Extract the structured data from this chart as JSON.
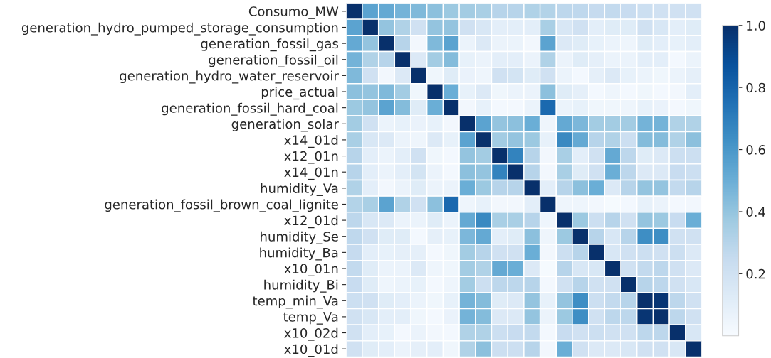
{
  "chart_data": {
    "type": "heatmap",
    "categories": [
      null,
      null,
      null,
      null,
      null,
      null,
      null,
      null,
      null,
      null,
      null,
      null,
      null,
      null,
      null,
      null,
      null,
      null,
      null,
      null,
      null,
      null
    ],
    "y_categories": [
      "Consumo_MW",
      "generation_hydro_pumped_storage_consumption",
      "generation_fossil_gas",
      "generation_fossil_oil",
      "generation_hydro_water_reservoir",
      "price_actual",
      "generation_fossil_hard_coal",
      "generation_solar",
      "x14_01d",
      "x12_01n",
      "x14_01n",
      "humidity_Va",
      "generation_fossil_brown_coal_lignite",
      "x12_01d",
      "humidity_Se",
      "humidity_Ba",
      "x10_01n",
      "humidity_Bi",
      "temp_min_Va",
      "temp_Va",
      "x10_02d",
      "x10_01d"
    ],
    "cells": [
      [
        1,
        0.55,
        0.52,
        0.48,
        0.45,
        0.42,
        0.38,
        0.36,
        0.34,
        0.3,
        0.3,
        0.32,
        0.31,
        0.28,
        0.27,
        0.25,
        0.26,
        0.24,
        0.22,
        0.2,
        0.2,
        0.2
      ],
      [
        0.55,
        1,
        0.4,
        0.32,
        0.2,
        0.4,
        0.4,
        0.2,
        0.16,
        0.1,
        0.1,
        0.1,
        0.34,
        0.16,
        0.2,
        0.1,
        0.12,
        0.12,
        0.2,
        0.16,
        0.1,
        0.12
      ],
      [
        0.52,
        0.4,
        1,
        0.3,
        0.03,
        0.45,
        0.55,
        0.06,
        0.14,
        0.06,
        0.06,
        0.03,
        0.55,
        0.14,
        0.12,
        0.08,
        0.06,
        0.05,
        0.12,
        0.1,
        0.08,
        0.1
      ],
      [
        0.48,
        0.32,
        0.3,
        1,
        0.14,
        0.36,
        0.44,
        0.08,
        0.06,
        0.1,
        0.1,
        0.06,
        0.32,
        0.06,
        0.12,
        0.09,
        0.06,
        0.06,
        0.1,
        0.1,
        0.02,
        0.06
      ],
      [
        0.45,
        0.2,
        0.03,
        0.14,
        1,
        0.04,
        0.12,
        0.07,
        0.05,
        0.2,
        0.18,
        0.12,
        0.2,
        0.06,
        0.02,
        0.09,
        0.14,
        0.08,
        0.06,
        0.04,
        0.06,
        0.09
      ],
      [
        0.42,
        0.4,
        0.45,
        0.36,
        0.04,
        1,
        0.5,
        0.08,
        0.14,
        0.04,
        0.06,
        0.06,
        0.42,
        0.12,
        0.09,
        0.02,
        0.05,
        0.02,
        0.04,
        0.02,
        0.03,
        0.1
      ],
      [
        0.38,
        0.4,
        0.55,
        0.44,
        0.12,
        0.5,
        1,
        0.03,
        0.08,
        0.02,
        0.02,
        0.06,
        0.78,
        0.06,
        0.08,
        0.04,
        0.04,
        0.05,
        0.08,
        0.07,
        0.02,
        0.04
      ],
      [
        0.36,
        0.2,
        0.06,
        0.08,
        0.07,
        0.08,
        0.03,
        1,
        0.55,
        0.4,
        0.42,
        0.5,
        0.05,
        0.52,
        0.46,
        0.36,
        0.36,
        0.36,
        0.48,
        0.48,
        0.32,
        0.32
      ],
      [
        0.34,
        0.16,
        0.14,
        0.06,
        0.05,
        0.14,
        0.08,
        0.55,
        1,
        0.36,
        0.4,
        0.38,
        0.08,
        0.66,
        0.52,
        0.3,
        0.32,
        0.22,
        0.44,
        0.44,
        0.32,
        0.42
      ],
      [
        0.3,
        0.1,
        0.06,
        0.1,
        0.2,
        0.04,
        0.02,
        0.4,
        0.36,
        1,
        0.68,
        0.3,
        0.03,
        0.34,
        0.1,
        0.2,
        0.52,
        0.28,
        0.12,
        0.14,
        0.22,
        0.22
      ],
      [
        0.3,
        0.1,
        0.06,
        0.1,
        0.18,
        0.06,
        0.02,
        0.42,
        0.4,
        0.68,
        1,
        0.3,
        0.03,
        0.34,
        0.12,
        0.2,
        0.5,
        0.28,
        0.14,
        0.14,
        0.24,
        0.22
      ],
      [
        0.32,
        0.1,
        0.03,
        0.06,
        0.12,
        0.06,
        0.06,
        0.5,
        0.38,
        0.3,
        0.3,
        1,
        0.1,
        0.3,
        0.42,
        0.5,
        0.14,
        0.3,
        0.4,
        0.4,
        0.26,
        0.3
      ],
      [
        0.31,
        0.34,
        0.55,
        0.32,
        0.2,
        0.42,
        0.78,
        0.05,
        0.08,
        0.03,
        0.03,
        0.1,
        1,
        0.05,
        0.05,
        0.03,
        0.01,
        0.02,
        0.08,
        0.06,
        0.02,
        0.03
      ],
      [
        0.28,
        0.16,
        0.14,
        0.06,
        0.06,
        0.12,
        0.06,
        0.52,
        0.66,
        0.34,
        0.34,
        0.3,
        0.05,
        1,
        0.38,
        0.22,
        0.3,
        0.2,
        0.4,
        0.38,
        0.24,
        0.5
      ],
      [
        0.27,
        0.2,
        0.12,
        0.12,
        0.02,
        0.09,
        0.08,
        0.46,
        0.52,
        0.1,
        0.12,
        0.42,
        0.05,
        0.38,
        1,
        0.3,
        0.16,
        0.3,
        0.64,
        0.64,
        0.2,
        0.2
      ],
      [
        0.25,
        0.1,
        0.08,
        0.09,
        0.09,
        0.02,
        0.04,
        0.36,
        0.3,
        0.2,
        0.2,
        0.5,
        0.03,
        0.22,
        0.3,
        1,
        0.16,
        0.2,
        0.22,
        0.2,
        0.22,
        0.14
      ],
      [
        0.26,
        0.12,
        0.06,
        0.06,
        0.14,
        0.05,
        0.04,
        0.36,
        0.32,
        0.52,
        0.5,
        0.14,
        0.01,
        0.3,
        0.16,
        0.16,
        1,
        0.2,
        0.26,
        0.28,
        0.2,
        0.14
      ],
      [
        0.24,
        0.12,
        0.05,
        0.06,
        0.08,
        0.02,
        0.05,
        0.36,
        0.22,
        0.28,
        0.28,
        0.3,
        0.02,
        0.2,
        0.3,
        0.2,
        0.2,
        1,
        0.3,
        0.28,
        0.2,
        0.16
      ],
      [
        0.22,
        0.2,
        0.12,
        0.1,
        0.06,
        0.04,
        0.08,
        0.48,
        0.44,
        0.12,
        0.14,
        0.4,
        0.08,
        0.4,
        0.64,
        0.22,
        0.26,
        0.3,
        1,
        0.98,
        0.28,
        0.2
      ],
      [
        0.2,
        0.16,
        0.1,
        0.1,
        0.04,
        0.02,
        0.07,
        0.48,
        0.44,
        0.14,
        0.14,
        0.4,
        0.06,
        0.38,
        0.64,
        0.2,
        0.28,
        0.28,
        0.98,
        1,
        0.28,
        0.2
      ],
      [
        0.2,
        0.1,
        0.08,
        0.02,
        0.06,
        0.03,
        0.02,
        0.32,
        0.32,
        0.22,
        0.24,
        0.26,
        0.02,
        0.24,
        0.2,
        0.22,
        0.2,
        0.2,
        0.28,
        0.28,
        1,
        0.16
      ],
      [
        0.2,
        0.12,
        0.1,
        0.06,
        0.09,
        0.1,
        0.04,
        0.32,
        0.42,
        0.22,
        0.22,
        0.3,
        0.03,
        0.5,
        0.2,
        0.14,
        0.14,
        0.16,
        0.2,
        0.2,
        0.16,
        1
      ]
    ],
    "clim": [
      0,
      1
    ],
    "cticks": [
      0.2,
      0.4,
      0.6,
      0.8,
      {
        "value": 1,
        "label": "1.0"
      }
    ],
    "tick_labels": "y"
  }
}
